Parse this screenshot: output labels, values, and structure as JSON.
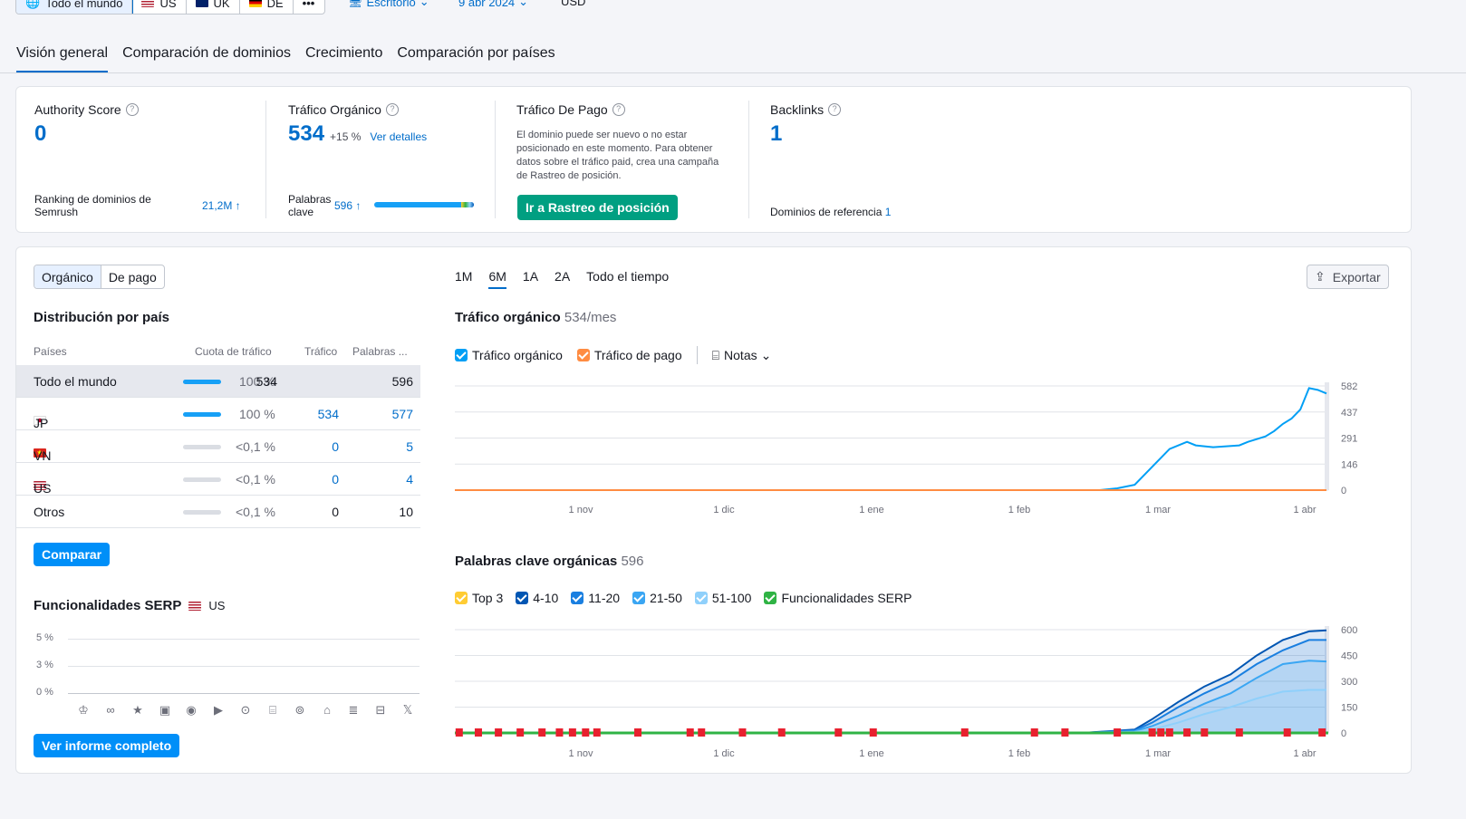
{
  "region_selector": {
    "options": [
      {
        "label": "Todo el mundo",
        "icon": "globe-icon",
        "active": true
      },
      {
        "label": "US",
        "icon": "us-flag-icon"
      },
      {
        "label": "UK",
        "icon": "uk-flag-icon"
      },
      {
        "label": "DE",
        "icon": "de-flag-icon"
      }
    ],
    "more_label": "•••"
  },
  "device": "Escritorio",
  "date": "9 abr 2024",
  "currency": "USD",
  "tabs": [
    "Visión general",
    "Comparación de dominios",
    "Crecimiento",
    "Comparación por países"
  ],
  "metrics": {
    "authority": {
      "title": "Authority Score",
      "value": "0",
      "sub_label": "Ranking de dominios de Semrush",
      "sub_value": "21,2M ↑"
    },
    "organic": {
      "title": "Tráfico Orgánico",
      "value": "534",
      "change": "+15 %",
      "details_link": "Ver detalles",
      "kw_label": "Palabras clave",
      "kw_value": "596 ↑"
    },
    "paid": {
      "title": "Tráfico De Pago",
      "note": "El dominio puede ser nuevo o no estar posicionado en este momento. Para obtener datos sobre el tráfico paid, crea una campaña de Rastreo de posición.",
      "button": "Ir a Rastreo de posición"
    },
    "backlinks": {
      "title": "Backlinks",
      "value": "1",
      "ref_label": "Dominios de referencia",
      "ref_value": "1"
    }
  },
  "left_panel": {
    "toggle": [
      "Orgánico",
      "De pago"
    ],
    "dist_title": "Distribución por país",
    "columns": [
      "Países",
      "Cuota de tráfico",
      "Tráfico",
      "Palabras ..."
    ],
    "rows": [
      {
        "country": "Todo el mundo",
        "share": "100 %",
        "share_value": 1.0,
        "traffic": "534",
        "keywords": "596"
      },
      {
        "country": "JP",
        "flag": "jp-flag-icon",
        "share": "100 %",
        "share_value": 1.0,
        "traffic": "534",
        "keywords": "577"
      },
      {
        "country": "VN",
        "flag": "vn-flag-icon",
        "share": "<0,1 %",
        "share_value": 0.0,
        "traffic": "0",
        "keywords": "5"
      },
      {
        "country": "US",
        "flag": "us-flag-icon",
        "share": "<0,1 %",
        "share_value": 0.0,
        "traffic": "0",
        "keywords": "4"
      },
      {
        "country": "Otros",
        "share": "<0,1 %",
        "share_value": 0.0,
        "traffic": "0",
        "keywords": "10"
      }
    ],
    "compare_button": "Comparar",
    "serp_title": "Funcionalidades SERP",
    "serp_country": "US",
    "serp_ticks": [
      "5 %",
      "3 %",
      "0 %"
    ],
    "serp_icons": [
      "crown-icon",
      "link-icon",
      "star-icon",
      "image-icon",
      "video-icon",
      "video-carousel-icon",
      "play-icon",
      "quote-icon",
      "pin-icon",
      "graduation-icon",
      "news-icon",
      "briefcase-icon",
      "x-icon"
    ],
    "report_button": "Ver informe completo"
  },
  "right_panel": {
    "ranges": [
      "1M",
      "6M",
      "1A",
      "2A",
      "Todo el tiempo"
    ],
    "active_range": "6M",
    "export_label": "Exportar",
    "traffic_title": "Tráfico orgánico",
    "traffic_sub": "534/mes",
    "legend1": [
      {
        "label": "Tráfico orgánico",
        "color": "#009ff5"
      },
      {
        "label": "Tráfico de pago",
        "color": "#ff8c42"
      }
    ],
    "notes_label": "Notas",
    "kw_title": "Palabras clave orgánicas",
    "kw_sub": "596",
    "legend2": [
      {
        "label": "Top 3",
        "color": "#ffcc33"
      },
      {
        "label": "4-10",
        "color": "#0056b3"
      },
      {
        "label": "11-20",
        "color": "#1a7fe0"
      },
      {
        "label": "21-50",
        "color": "#3aa6f3"
      },
      {
        "label": "51-100",
        "color": "#8fd0fb"
      },
      {
        "label": "Funcionalidades SERP",
        "color": "#2fb344"
      }
    ]
  },
  "chart_data": [
    {
      "type": "line",
      "title": "Tráfico orgánico",
      "x_ticks": [
        "1 nov",
        "1 dic",
        "1 ene",
        "1 feb",
        "1 mar",
        "1 abr"
      ],
      "y_ticks": [
        "582",
        "437",
        "291",
        "146",
        "0"
      ],
      "ylim": [
        0,
        582
      ],
      "series": [
        {
          "name": "Tráfico orgánico",
          "color": "#009ff5",
          "points": [
            [
              0,
              0
            ],
            [
              0.6,
              0
            ],
            [
              0.74,
              0
            ],
            [
              0.76,
              10
            ],
            [
              0.78,
              30
            ],
            [
              0.79,
              80
            ],
            [
              0.81,
              180
            ],
            [
              0.82,
              230
            ],
            [
              0.84,
              270
            ],
            [
              0.85,
              250
            ],
            [
              0.86,
              245
            ],
            [
              0.87,
              240
            ],
            [
              0.9,
              250
            ],
            [
              0.91,
              270
            ],
            [
              0.93,
              300
            ],
            [
              0.94,
              330
            ],
            [
              0.95,
              370
            ],
            [
              0.96,
              400
            ],
            [
              0.97,
              450
            ],
            [
              0.98,
              570
            ],
            [
              0.99,
              560
            ],
            [
              1,
              540
            ]
          ]
        },
        {
          "name": "Tráfico de pago",
          "color": "#ff8c42",
          "points": [
            [
              0,
              0
            ],
            [
              1,
              0
            ]
          ]
        }
      ]
    },
    {
      "type": "area",
      "title": "Palabras clave orgánicas",
      "x_ticks": [
        "1 nov",
        "1 dic",
        "1 ene",
        "1 feb",
        "1 mar",
        "1 abr"
      ],
      "y_ticks": [
        "600",
        "450",
        "300",
        "150",
        "0"
      ],
      "ylim": [
        0,
        600
      ],
      "series": [
        {
          "name": "4-10",
          "color": "#0056b3",
          "points": [
            [
              0,
              0
            ],
            [
              0.72,
              0
            ],
            [
              0.78,
              20
            ],
            [
              0.8,
              80
            ],
            [
              0.83,
              180
            ],
            [
              0.86,
              270
            ],
            [
              0.89,
              340
            ],
            [
              0.92,
              450
            ],
            [
              0.95,
              540
            ],
            [
              0.98,
              590
            ],
            [
              1,
              596
            ]
          ]
        },
        {
          "name": "11-20",
          "color": "#1a7fe0",
          "points": [
            [
              0,
              0
            ],
            [
              0.72,
              0
            ],
            [
              0.78,
              15
            ],
            [
              0.8,
              60
            ],
            [
              0.83,
              150
            ],
            [
              0.86,
              230
            ],
            [
              0.89,
              300
            ],
            [
              0.92,
              400
            ],
            [
              0.95,
              480
            ],
            [
              0.98,
              540
            ],
            [
              1,
              540
            ]
          ]
        },
        {
          "name": "21-50",
          "color": "#3aa6f3",
          "points": [
            [
              0,
              0
            ],
            [
              0.72,
              0
            ],
            [
              0.78,
              10
            ],
            [
              0.8,
              40
            ],
            [
              0.83,
              100
            ],
            [
              0.86,
              170
            ],
            [
              0.89,
              230
            ],
            [
              0.92,
              320
            ],
            [
              0.95,
              400
            ],
            [
              0.98,
              420
            ],
            [
              1,
              415
            ]
          ]
        },
        {
          "name": "51-100",
          "color": "#8fd0fb",
          "points": [
            [
              0,
              0
            ],
            [
              0.72,
              0
            ],
            [
              0.78,
              5
            ],
            [
              0.8,
              20
            ],
            [
              0.83,
              60
            ],
            [
              0.86,
              110
            ],
            [
              0.89,
              150
            ],
            [
              0.92,
              200
            ],
            [
              0.95,
              240
            ],
            [
              0.98,
              250
            ],
            [
              1,
              250
            ]
          ]
        }
      ]
    }
  ]
}
